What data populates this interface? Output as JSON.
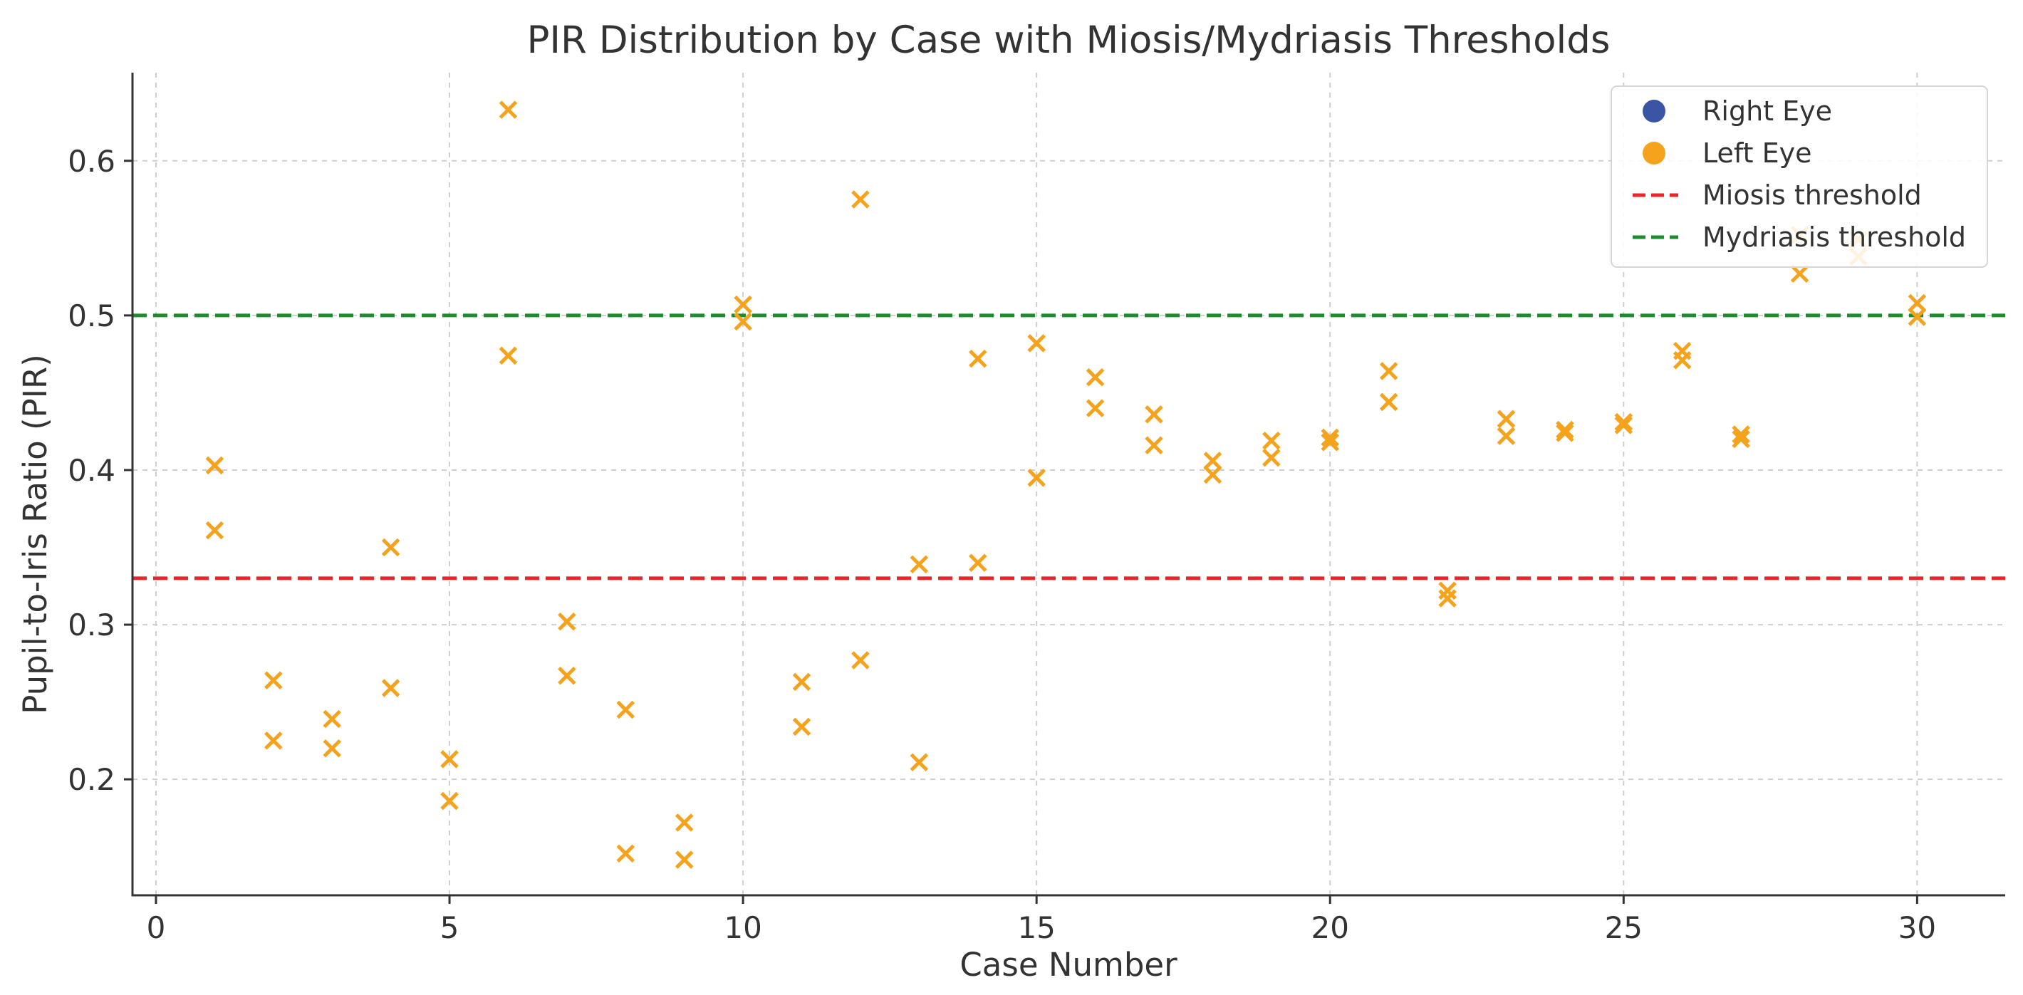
{
  "chart_data": {
    "type": "scatter",
    "title": "PIR Distribution by Case with Miosis/Mydriasis Thresholds",
    "xlabel": "Case Number",
    "ylabel": "Pupil-to-Iris Ratio (PIR)",
    "xlim": [
      -0.4,
      31.5
    ],
    "ylim": [
      0.125,
      0.657
    ],
    "xticks": [
      0,
      5,
      10,
      15,
      20,
      25,
      30
    ],
    "yticks": [
      0.2,
      0.3,
      0.4,
      0.5,
      0.6
    ],
    "xtick_labels": [
      "0",
      "5",
      "10",
      "15",
      "20",
      "25",
      "30"
    ],
    "ytick_labels": [
      "0.2",
      "0.3",
      "0.4",
      "0.5",
      "0.6"
    ],
    "grid": true,
    "legend_position": "top-right",
    "series": [
      {
        "name": "Right Eye",
        "color": "#3a55a4",
        "marker": "x",
        "x": [],
        "y": []
      },
      {
        "name": "Left Eye",
        "color": "#f5a31d",
        "marker": "x",
        "x": [
          1,
          1,
          2,
          2,
          3,
          3,
          4,
          4,
          5,
          5,
          6,
          6,
          7,
          7,
          8,
          8,
          9,
          9,
          10,
          10,
          11,
          11,
          12,
          12,
          13,
          13,
          14,
          14,
          15,
          15,
          16,
          16,
          17,
          17,
          18,
          18,
          19,
          19,
          20,
          20,
          21,
          21,
          22,
          22,
          23,
          23,
          24,
          24,
          25,
          25,
          26,
          26,
          27,
          27,
          28,
          28,
          29,
          29,
          30,
          30
        ],
        "y": [
          0.403,
          0.361,
          0.264,
          0.225,
          0.239,
          0.22,
          0.35,
          0.259,
          0.213,
          0.186,
          0.633,
          0.474,
          0.302,
          0.267,
          0.245,
          0.152,
          0.172,
          0.148,
          0.507,
          0.496,
          0.263,
          0.234,
          0.575,
          0.277,
          0.339,
          0.211,
          0.472,
          0.34,
          0.482,
          0.395,
          0.46,
          0.44,
          0.436,
          0.416,
          0.406,
          0.397,
          0.419,
          0.408,
          0.421,
          0.418,
          0.464,
          0.444,
          0.322,
          0.317,
          0.433,
          0.422,
          0.426,
          0.424,
          0.431,
          0.429,
          0.477,
          0.471,
          0.423,
          0.42,
          0.552,
          0.527,
          0.549,
          0.538,
          0.508,
          0.499
        ]
      }
    ],
    "thresholds": [
      {
        "name": "Miosis threshold",
        "value": 0.33,
        "color": "#e8262a",
        "style": "dashed"
      },
      {
        "name": "Mydriasis threshold",
        "value": 0.5,
        "color": "#1e8c2e",
        "style": "dashed"
      }
    ],
    "legend": [
      {
        "label": "Right Eye",
        "color": "#3a55a4",
        "kind": "dot"
      },
      {
        "label": "Left Eye",
        "color": "#f5a31d",
        "kind": "dot"
      },
      {
        "label": "Miosis threshold",
        "color": "#e8262a",
        "kind": "dash"
      },
      {
        "label": "Mydriasis threshold",
        "color": "#1e8c2e",
        "kind": "dash"
      }
    ]
  }
}
